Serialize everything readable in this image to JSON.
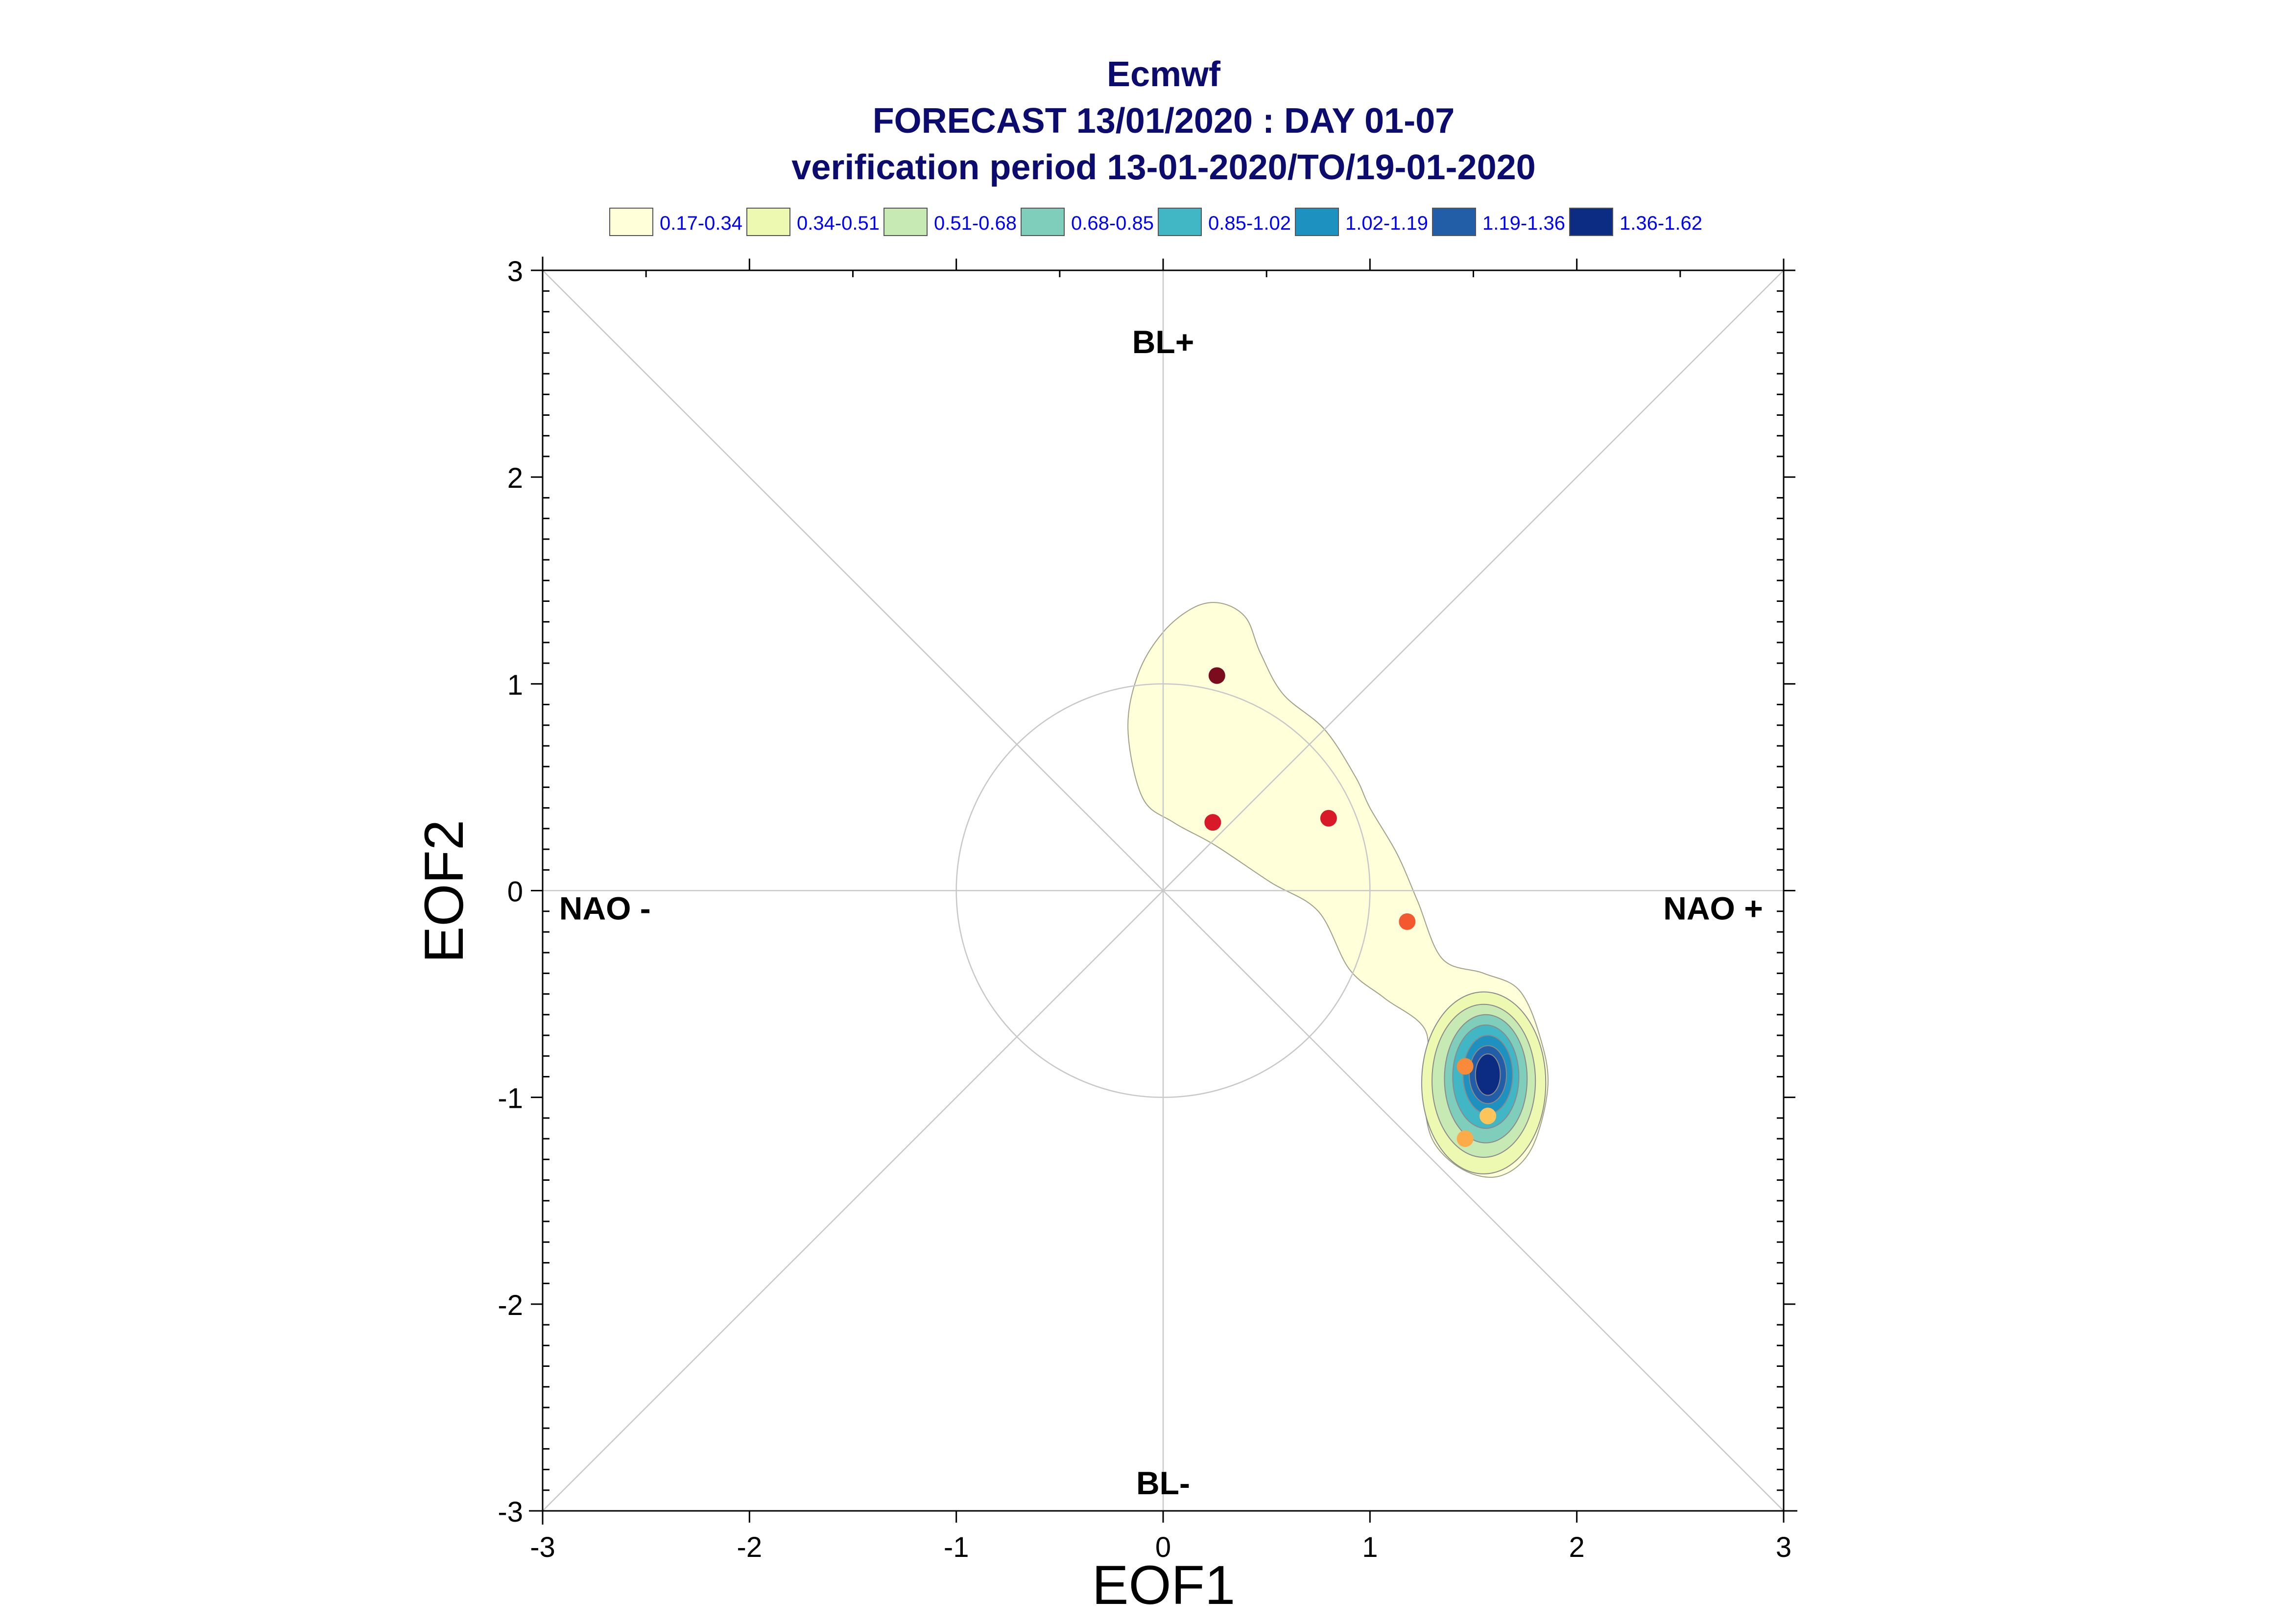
{
  "chart_data": {
    "type": "scatter",
    "title_lines": [
      "Ecmwf",
      "FORECAST 13/01/2020 : DAY 01-07",
      "verification period 13-01-2020/TO/19-01-2020"
    ],
    "xlabel": "EOF1",
    "ylabel": "EOF2",
    "xlim": [
      -3,
      3
    ],
    "ylim": [
      -3,
      3
    ],
    "x_ticks": [
      -3,
      -2,
      -1,
      0,
      1,
      2,
      3
    ],
    "y_ticks": [
      -3,
      -2,
      -1,
      0,
      1,
      2,
      3
    ],
    "x_tick_labels": [
      "-3",
      "-2",
      "-1",
      "0",
      "1",
      "2",
      "3"
    ],
    "y_tick_labels": [
      "-3",
      "-2",
      "-1",
      "0",
      "1",
      "2",
      "3"
    ],
    "region_labels": {
      "top": "BL+",
      "bottom": "BL-",
      "left": "NAO -",
      "right": "NAO +"
    },
    "unit_circle_radius": 1,
    "grid": false,
    "legend_placement": "top",
    "density_legend": [
      {
        "label": "0.17-0.34",
        "color": "#ffffd9"
      },
      {
        "label": "0.34-0.51",
        "color": "#edf8b1"
      },
      {
        "label": "0.51-0.68",
        "color": "#c7e9b4"
      },
      {
        "label": "0.68-0.85",
        "color": "#7fcdbb"
      },
      {
        "label": "0.85-1.02",
        "color": "#41b6c4"
      },
      {
        "label": "1.02-1.19",
        "color": "#1d91c0"
      },
      {
        "label": "1.19-1.36",
        "color": "#225ea8"
      },
      {
        "label": "1.36-1.62",
        "color": "#0c2c84"
      }
    ],
    "points": [
      {
        "x": 0.26,
        "y": 1.04,
        "color": "#7a0c1e"
      },
      {
        "x": 0.24,
        "y": 0.33,
        "color": "#d7192a"
      },
      {
        "x": 0.8,
        "y": 0.35,
        "color": "#d7192a"
      },
      {
        "x": 1.18,
        "y": -0.15,
        "color": "#f4582e"
      },
      {
        "x": 1.46,
        "y": -0.85,
        "color": "#f98a3a"
      },
      {
        "x": 1.57,
        "y": -1.09,
        "color": "#fdc45a"
      },
      {
        "x": 1.46,
        "y": -1.2,
        "color": "#fdab48"
      }
    ],
    "density_outline": [
      [
        -0.17,
        0.78
      ],
      [
        -0.12,
        1.05
      ],
      [
        0.0,
        1.25
      ],
      [
        0.15,
        1.37
      ],
      [
        0.28,
        1.39
      ],
      [
        0.4,
        1.32
      ],
      [
        0.47,
        1.15
      ],
      [
        0.58,
        0.95
      ],
      [
        0.78,
        0.78
      ],
      [
        0.93,
        0.55
      ],
      [
        1.0,
        0.4
      ],
      [
        1.13,
        0.18
      ],
      [
        1.23,
        -0.05
      ],
      [
        1.35,
        -0.33
      ],
      [
        1.55,
        -0.4
      ],
      [
        1.72,
        -0.48
      ],
      [
        1.82,
        -0.7
      ],
      [
        1.86,
        -0.95
      ],
      [
        1.78,
        -1.25
      ],
      [
        1.63,
        -1.38
      ],
      [
        1.45,
        -1.35
      ],
      [
        1.3,
        -1.2
      ],
      [
        1.26,
        -0.95
      ],
      [
        1.27,
        -0.68
      ],
      [
        1.07,
        -0.52
      ],
      [
        0.9,
        -0.38
      ],
      [
        0.75,
        -0.1
      ],
      [
        0.52,
        0.04
      ],
      [
        0.25,
        0.22
      ],
      [
        0.05,
        0.33
      ],
      [
        -0.1,
        0.45
      ]
    ],
    "density_core": [
      {
        "level": 1,
        "cx": 1.55,
        "cy": -0.93,
        "rx": 0.3,
        "ry": 0.44
      },
      {
        "level": 2,
        "cx": 1.55,
        "cy": -0.92,
        "rx": 0.25,
        "ry": 0.37
      },
      {
        "level": 3,
        "cx": 1.56,
        "cy": -0.91,
        "rx": 0.2,
        "ry": 0.31
      },
      {
        "level": 4,
        "cx": 1.56,
        "cy": -0.9,
        "rx": 0.16,
        "ry": 0.25
      },
      {
        "level": 5,
        "cx": 1.57,
        "cy": -0.89,
        "rx": 0.12,
        "ry": 0.19
      },
      {
        "level": 6,
        "cx": 1.57,
        "cy": -0.89,
        "rx": 0.09,
        "ry": 0.14
      },
      {
        "level": 7,
        "cx": 1.57,
        "cy": -0.89,
        "rx": 0.06,
        "ry": 0.1
      }
    ]
  }
}
